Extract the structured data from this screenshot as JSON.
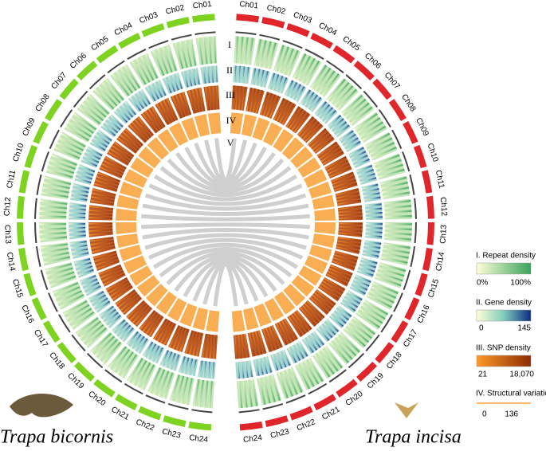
{
  "left_genome": {
    "name": "Trapa bicornis",
    "chromosomes": [
      "Ch01",
      "Ch02",
      "Ch03",
      "Ch04",
      "Ch05",
      "Ch06",
      "Ch07",
      "Ch08",
      "Ch09",
      "Ch10",
      "Ch11",
      "Ch12",
      "Ch13",
      "Ch14",
      "Ch15",
      "Ch16",
      "Ch17",
      "Ch18",
      "Ch19",
      "Ch20",
      "Ch21",
      "Ch22",
      "Ch23",
      "Ch24"
    ]
  },
  "right_genome": {
    "name": "Trapa incisa",
    "chromosomes": [
      "Ch01",
      "Ch02",
      "Ch03",
      "Ch04",
      "Ch05",
      "Ch06",
      "Ch07",
      "Ch08",
      "Ch09",
      "Ch10",
      "Ch11",
      "Ch12",
      "Ch13",
      "Ch14",
      "Ch15",
      "Ch16",
      "Ch17",
      "Ch18",
      "Ch19",
      "Ch20",
      "Ch21",
      "Ch22",
      "Ch23",
      "Ch24"
    ]
  },
  "track_labels": [
    "I",
    "II",
    "III",
    "IV",
    "V"
  ],
  "legend": [
    {
      "title": "I. Repeat density",
      "min": "0%",
      "max": "100%"
    },
    {
      "title": "II. Gene density",
      "min": "0",
      "max": "145"
    },
    {
      "title": "III. SNP density",
      "min": "21",
      "max": "18,070"
    },
    {
      "title": "IV. Structural variation",
      "min": "0",
      "max": "136"
    }
  ]
}
